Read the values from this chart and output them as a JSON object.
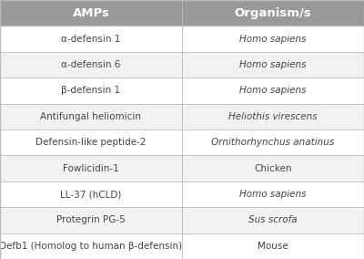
{
  "headers": [
    "AMPs",
    "Organism/s"
  ],
  "rows": [
    [
      "α-defensin 1",
      "Homo sapiens"
    ],
    [
      "α-defensin 6",
      "Homo sapiens"
    ],
    [
      "β-defensin 1",
      "Homo sapiens"
    ],
    [
      "Antifungal heliomicin",
      "Heliothis virescens"
    ],
    [
      "Defensin-like peptide-2",
      "Ornithorhynchus anatinus"
    ],
    [
      "Fowlicidin-1",
      "Chicken"
    ],
    [
      "LL-37 (hCLD)",
      "Homo sapiens"
    ],
    [
      "Protegrin PG-5",
      "Sus scrofa"
    ],
    [
      "Defb1 (Homolog to human β-defensin)",
      "Mouse"
    ]
  ],
  "italic_col2": [
    true,
    true,
    true,
    true,
    true,
    false,
    true,
    true,
    false
  ],
  "header_bg": "#999999",
  "header_text": "#ffffff",
  "row_bg_even": "#f2f2f2",
  "row_bg_odd": "#ffffff",
  "border_color": "#bbbbbb",
  "text_color": "#444444",
  "fig_bg": "#ffffff",
  "col_split": 0.5,
  "header_fontsize": 9.5,
  "body_fontsize": 7.5
}
